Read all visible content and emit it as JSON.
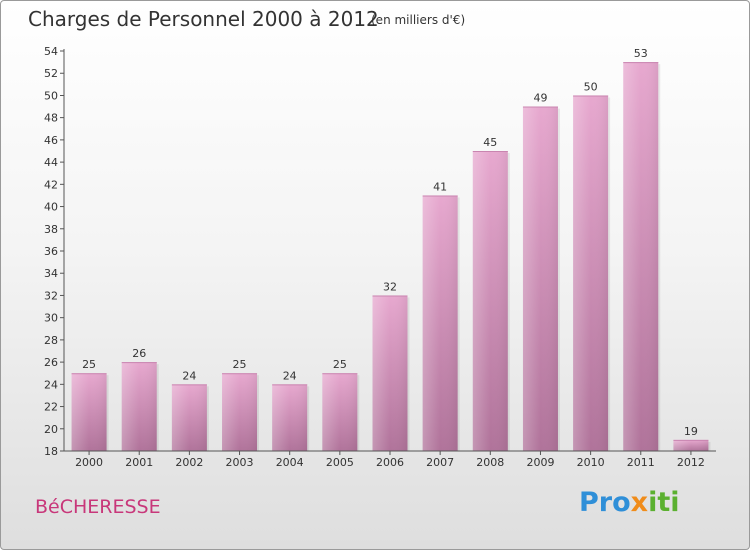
{
  "header": {
    "title": "Charges de Personnel 2000 à 2012",
    "subtitle": "(en milliers d'€)"
  },
  "footer": {
    "place": "BéCHERESSE",
    "brand": [
      "Pro",
      "x",
      "iti"
    ]
  },
  "colors": {
    "bar_light": "#e7a8cf",
    "bar_dark": "#b0739a",
    "axis": "#555555"
  },
  "chart_data": {
    "type": "bar",
    "title": "Charges de Personnel 2000 à 2012",
    "subtitle": "(en milliers d'€)",
    "categories": [
      "2000",
      "2001",
      "2002",
      "2003",
      "2004",
      "2005",
      "2006",
      "2007",
      "2008",
      "2009",
      "2010",
      "2011",
      "2012"
    ],
    "values": [
      25,
      26,
      24,
      25,
      24,
      25,
      32,
      41,
      45,
      49,
      50,
      53,
      19
    ],
    "ylim": [
      18,
      54
    ],
    "yticks": [
      18,
      20,
      22,
      24,
      26,
      28,
      30,
      32,
      34,
      36,
      38,
      40,
      42,
      44,
      46,
      48,
      50,
      52,
      54
    ],
    "grid": false,
    "data_labels": true
  }
}
